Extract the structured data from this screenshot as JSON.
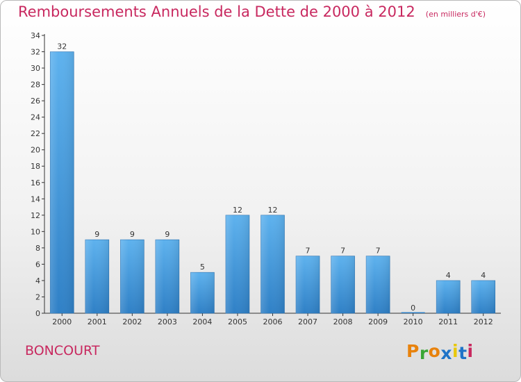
{
  "title": "Remboursements Annuels de la Dette de 2000 à 2012",
  "subtitle": "(en milliers d'€)",
  "commune": "BONCOURT",
  "logo": {
    "letters": [
      "P",
      "r",
      "o",
      "x",
      "i",
      "t",
      "i"
    ],
    "colors": [
      "#e8820c",
      "#3aa635",
      "#e8820c",
      "#1f74c8",
      "#e8c80c",
      "#1f74c8",
      "#c8285f"
    ]
  },
  "chart_data": {
    "type": "bar",
    "categories": [
      "2000",
      "2001",
      "2002",
      "2003",
      "2004",
      "2005",
      "2006",
      "2007",
      "2008",
      "2009",
      "2010",
      "2011",
      "2012"
    ],
    "values": [
      32,
      9,
      9,
      9,
      5,
      12,
      12,
      7,
      7,
      7,
      0,
      4,
      4
    ],
    "data_labels": [
      "32",
      "9",
      "9",
      "9",
      "5",
      "12",
      "12",
      "7",
      "7",
      "7",
      "0",
      "4",
      "4"
    ],
    "ylim": [
      0,
      34
    ],
    "yticks": [
      0,
      2,
      4,
      6,
      8,
      10,
      12,
      14,
      16,
      18,
      20,
      22,
      24,
      26,
      28,
      30,
      32,
      34
    ],
    "bar_color": "#4a9fe0",
    "grid": false,
    "legend": "none"
  }
}
